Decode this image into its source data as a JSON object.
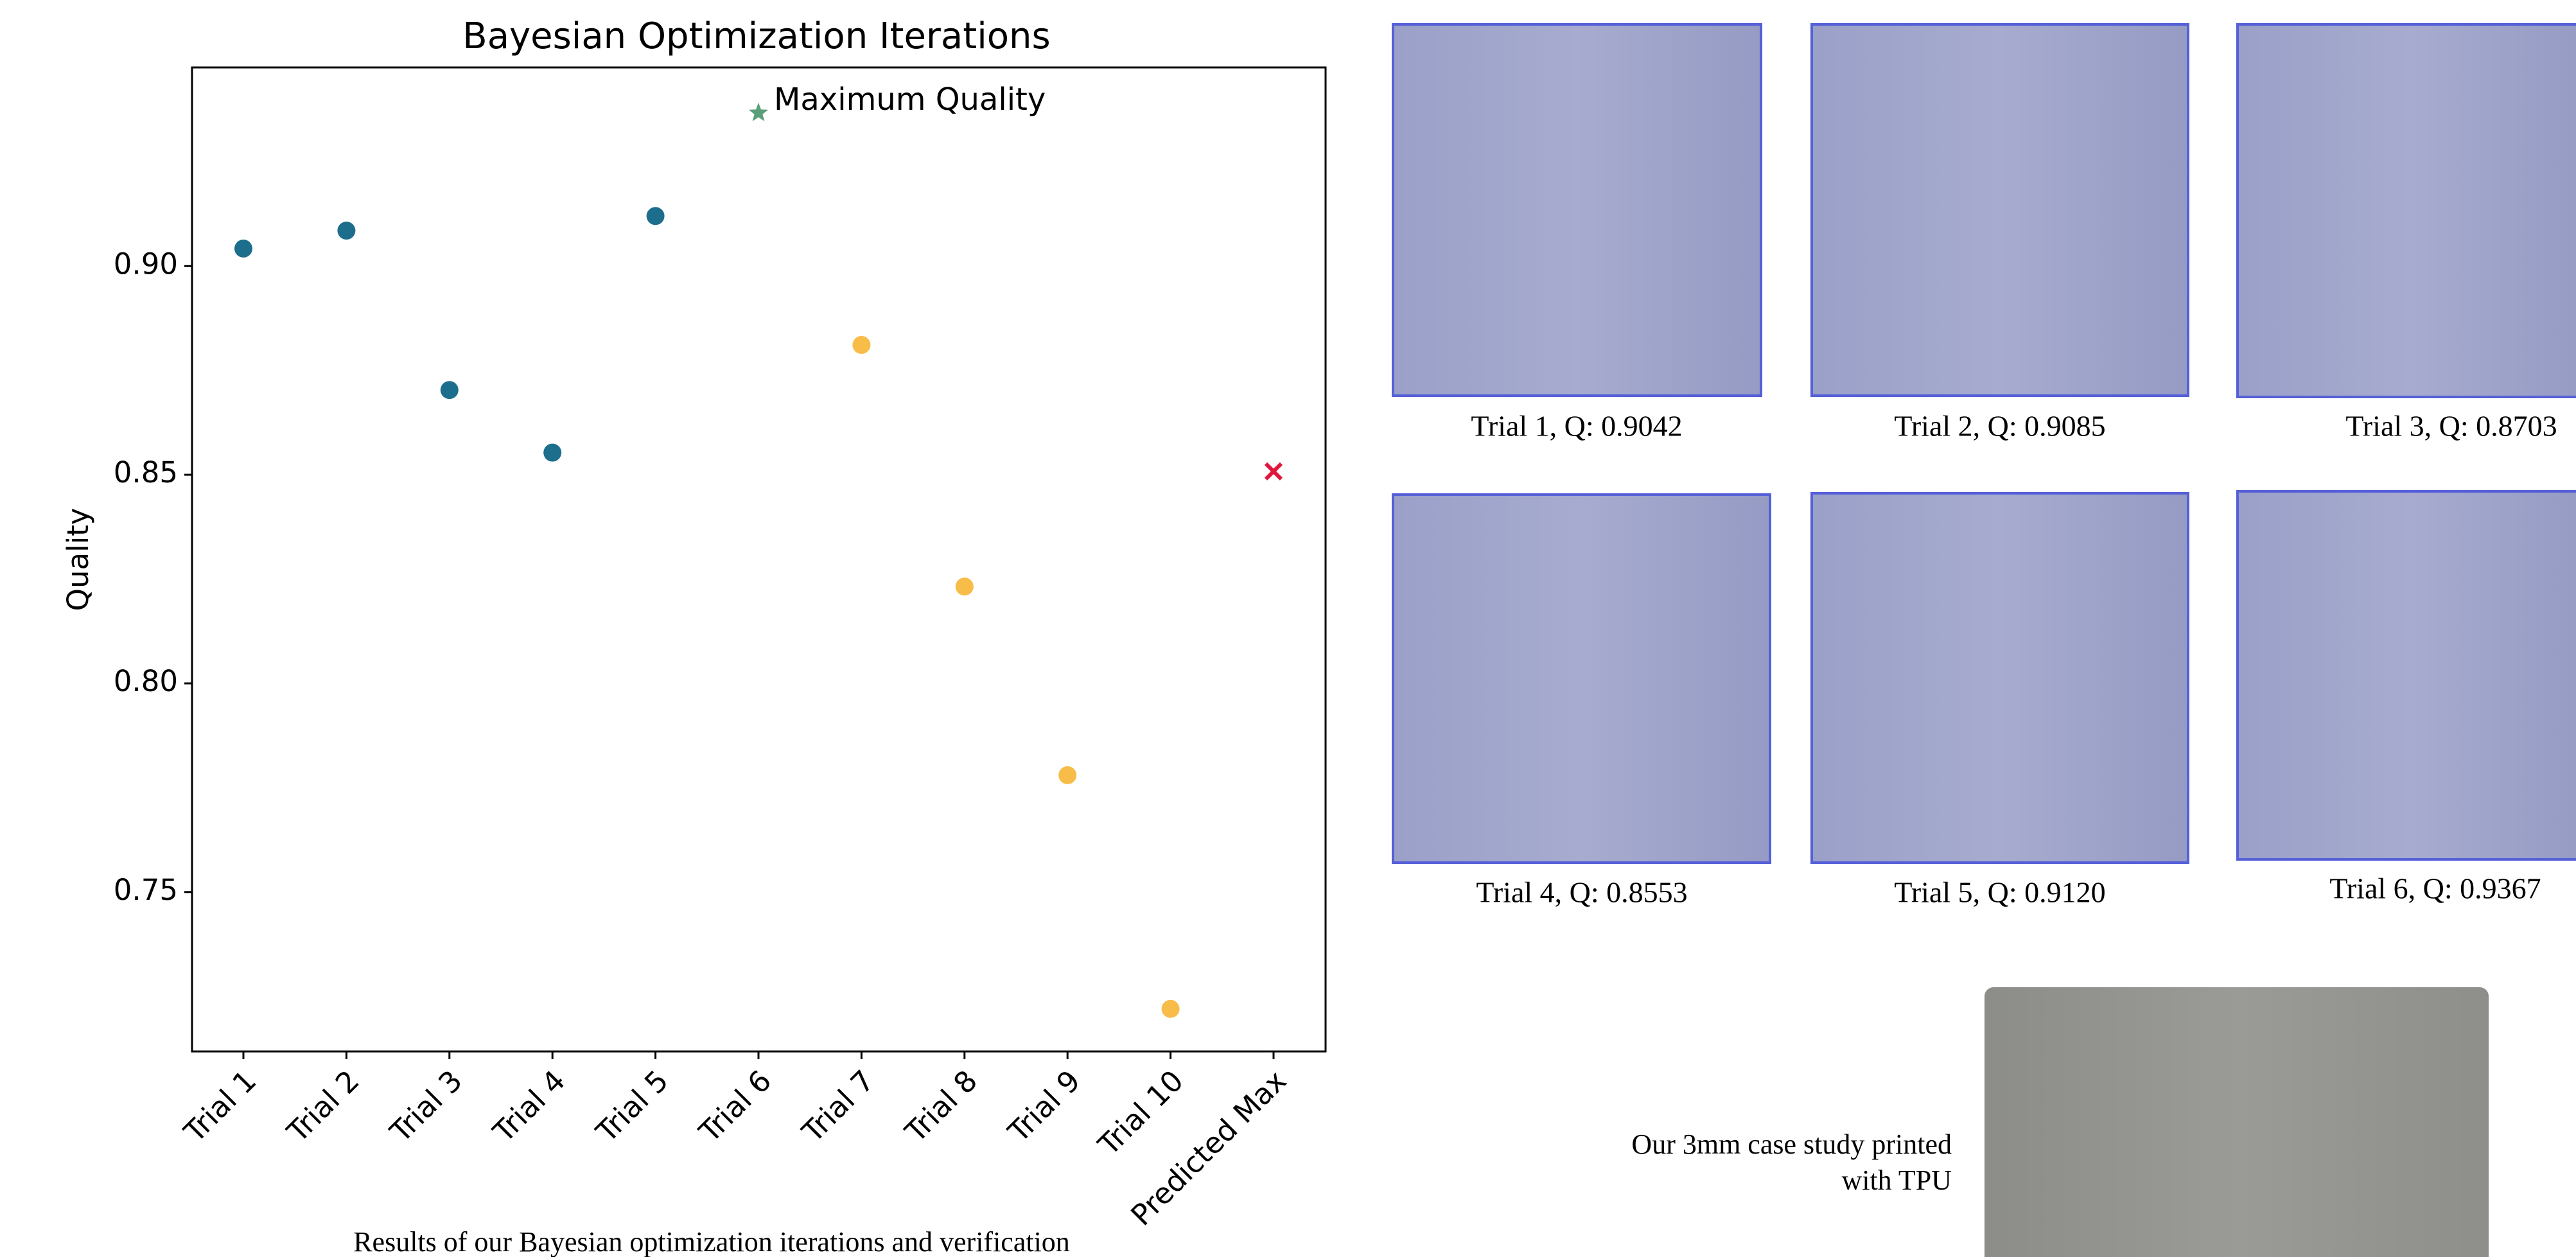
{
  "chart_data": {
    "type": "scatter",
    "title": "Bayesian Optimization Iterations",
    "y_label": "Quality",
    "categories": [
      "Trial 1",
      "Trial 2",
      "Trial 3",
      "Trial 4",
      "Trial 5",
      "Trial 6",
      "Trial 7",
      "Trial 8",
      "Trial 9",
      "Trial 10",
      "Predicted Max"
    ],
    "series": [
      {
        "color": "#1c6e8c",
        "marker": "circle",
        "values": [
          0.9042,
          0.9085,
          0.8703,
          0.8553,
          0.912,
          null,
          null,
          null,
          null,
          null,
          null
        ]
      },
      {
        "color": "#5a9e7a",
        "marker": "star",
        "values": [
          null,
          null,
          null,
          null,
          null,
          0.9367,
          null,
          null,
          null,
          null,
          null
        ]
      },
      {
        "color": "#f7bd48",
        "marker": "circle",
        "values": [
          null,
          null,
          null,
          null,
          null,
          null,
          0.8811,
          0.8232,
          0.778,
          0.722,
          null
        ]
      },
      {
        "color": "#e0173c",
        "marker": "x",
        "values": [
          null,
          null,
          null,
          null,
          null,
          null,
          null,
          null,
          null,
          null,
          0.8508
        ]
      }
    ],
    "annotation": "Maximum Quality",
    "ylim": [
      0.7118,
      0.9476
    ],
    "yticks": [
      {
        "value": 0.75,
        "label": "0.75"
      },
      {
        "value": 0.8,
        "label": "0.80"
      },
      {
        "value": 0.85,
        "label": "0.85"
      },
      {
        "value": 0.9,
        "label": "0.90"
      }
    ],
    "grid": false
  },
  "figure_caption": "Results of our Bayesian optimization iterations and verification",
  "trial_images": [
    "Trial 1, Q: 0.9042",
    "Trial 2, Q: 0.9085",
    "Trial 3, Q: 0.8703",
    "Trial 4, Q: 0.8553",
    "Trial 5, Q: 0.9120",
    "Trial 6, Q: 0.9367"
  ],
  "case_study_caption": [
    "Our 3mm case study printed",
    "with TPU"
  ]
}
